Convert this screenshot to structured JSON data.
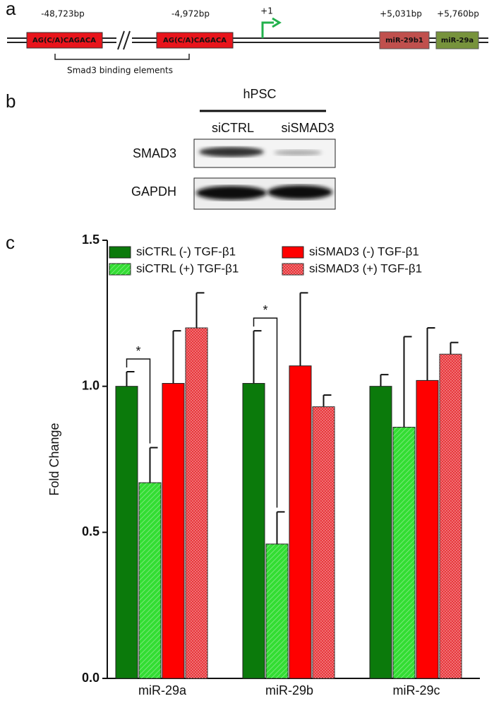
{
  "panels": {
    "a": "a",
    "b": "b",
    "c": "c"
  },
  "diagram": {
    "sites": [
      {
        "position": "-48,723bp",
        "label": "AG(C/A)CAGACA"
      },
      {
        "position": "-4,972bp",
        "label": "AG(C/A)CAGACA"
      }
    ],
    "tss": "+1",
    "genes": [
      {
        "position": "+5,031bp",
        "label": "miR-29b1"
      },
      {
        "position": "+5,760bp",
        "label": "miR-29a"
      }
    ],
    "bracket_label": "Smad3 binding elements"
  },
  "blot": {
    "group": "hPSC",
    "lanes": [
      "siCTRL",
      "siSMAD3"
    ],
    "rows": [
      "SMAD3",
      "GAPDH"
    ]
  },
  "chart_data": {
    "type": "bar",
    "y_label": "Fold Change",
    "categories": [
      "miR-29a",
      "miR-29b",
      "miR-29c"
    ],
    "series": [
      {
        "name": "siCTRL (-) TGF-β1",
        "color": "#0b7a0b",
        "hatch": false,
        "values": [
          1.0,
          1.01,
          1.0
        ],
        "errors": [
          0.05,
          0.18,
          0.04
        ]
      },
      {
        "name": "siCTRL (+) TGF-β1",
        "color": "#33dd33",
        "hatch": true,
        "values": [
          0.67,
          0.46,
          0.86
        ],
        "errors": [
          0.12,
          0.11,
          0.31
        ]
      },
      {
        "name": "siSMAD3 (-) TGF-β1",
        "color": "#ff0000",
        "hatch": false,
        "values": [
          1.01,
          1.07,
          1.02
        ],
        "errors": [
          0.18,
          0.25,
          0.18
        ]
      },
      {
        "name": "siSMAD3 (+) TGF-β1",
        "color": "#e8353a",
        "hatch": true,
        "values": [
          1.2,
          0.93,
          1.11
        ],
        "errors": [
          0.12,
          0.04,
          0.04
        ]
      }
    ],
    "annotations": [
      "*",
      "*"
    ],
    "ylim": [
      0,
      1.5
    ],
    "yticks": [
      {
        "value": 0,
        "label": "0.0"
      },
      0.5,
      {
        "value": 1,
        "label": "1.0"
      },
      1.5
    ]
  }
}
